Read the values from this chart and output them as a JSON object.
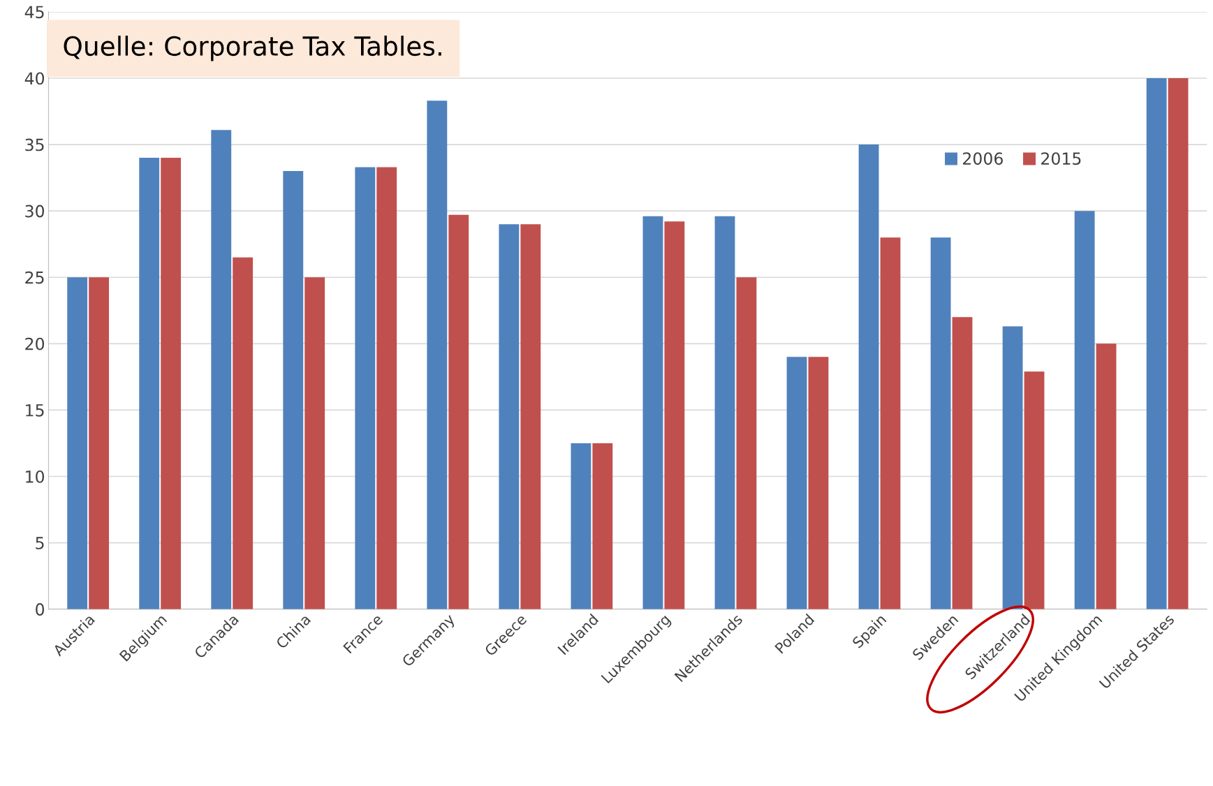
{
  "chart_data": {
    "type": "bar",
    "categories": [
      "Austria",
      "Belgium",
      "Canada",
      "China",
      "France",
      "Germany",
      "Greece",
      "Ireland",
      "Luxembourg",
      "Netherlands",
      "Poland",
      "Spain",
      "Sweden",
      "Switzerland",
      "United Kingdom",
      "United States"
    ],
    "series": [
      {
        "name": "2006",
        "color": "#4f81bd",
        "values": [
          25,
          34,
          36.1,
          33,
          33.3,
          38.3,
          29,
          12.5,
          29.6,
          29.6,
          19,
          35,
          28,
          21.3,
          30,
          40
        ]
      },
      {
        "name": "2015",
        "color": "#c0504d",
        "values": [
          25,
          34,
          26.5,
          25,
          33.3,
          29.7,
          29,
          12.5,
          29.2,
          25,
          19,
          28,
          22,
          17.9,
          20,
          40
        ]
      }
    ],
    "ylim": [
      0,
      45
    ],
    "yticks": [
      0,
      5,
      10,
      15,
      20,
      25,
      30,
      35,
      40,
      45
    ],
    "grid": "y",
    "legend": "top right",
    "annotations": [
      "Quelle: Corporate Tax Tables."
    ]
  }
}
